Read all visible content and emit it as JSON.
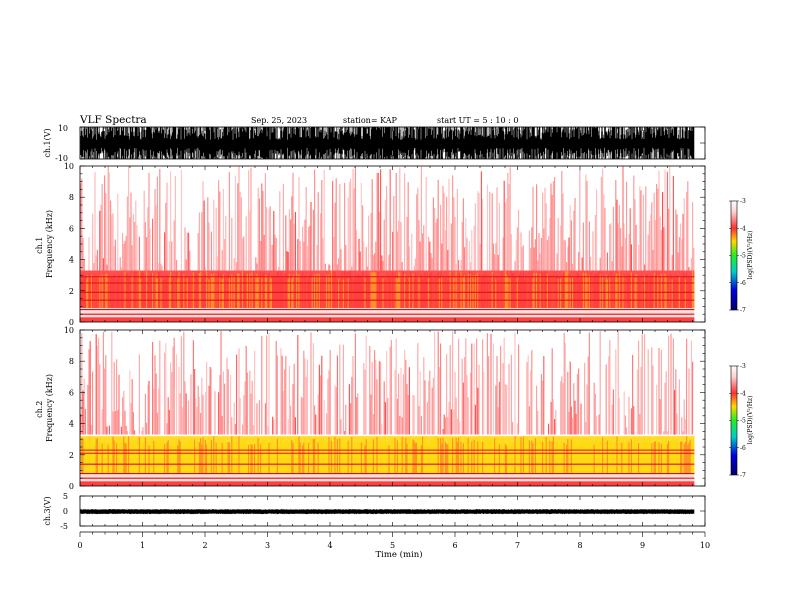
{
  "header": {
    "title": "VLF Spectra",
    "date": "Sep. 25, 2023",
    "station": "station= KAP",
    "start": "start  UT =   5  : 10 : 0"
  },
  "chart_data": [
    {
      "type": "line",
      "panel": "ch1-waveform",
      "ylabel": "ch.1(V)",
      "ylim": [
        -10,
        10
      ],
      "yticks": [
        "10",
        "-10"
      ],
      "x_unit": "Time (min)",
      "xlim": [
        0,
        10
      ],
      "data_end_min": 9.83,
      "signal": "dense noise saturating roughly -10 to 10 V"
    },
    {
      "type": "heatmap",
      "panel": "ch1-spectrogram",
      "ylabel": "ch.1\nFrequency (kHz)",
      "ylim": [
        0,
        10
      ],
      "yticks": [
        "10",
        "8",
        "6",
        "4",
        "2",
        "0"
      ],
      "xlim": [
        0,
        10
      ],
      "data_end_min": 9.83,
      "colorbar": {
        "label": "log(PSD)(V²/Hz)",
        "range": [
          -7,
          -3
        ],
        "ticks": [
          "-3",
          "-4",
          "-5",
          "-6",
          "-7"
        ],
        "colors": [
          "#ffffff",
          "#ff3030",
          "#ffd700",
          "#22ee22",
          "#00cccc",
          "#0000dd",
          "#00006e"
        ]
      },
      "bands": [
        {
          "from_khz": 0,
          "to_khz": 0.9,
          "log_psd": -3.6
        },
        {
          "from_khz": 0.9,
          "to_khz": 3.3,
          "log_psd": -4.1
        },
        {
          "from_khz": 3.3,
          "to_khz": 10,
          "log_psd": -3.4
        }
      ],
      "lines_khz": [
        0.5,
        0.8,
        1.4,
        1.9,
        2.5,
        2.9
      ]
    },
    {
      "type": "heatmap",
      "panel": "ch2-spectrogram",
      "ylabel": "ch.2\nFrequency (kHz)",
      "ylim": [
        0,
        10
      ],
      "yticks": [
        "10",
        "8",
        "6",
        "4",
        "2",
        "0"
      ],
      "xlim": [
        0,
        10
      ],
      "data_end_min": 9.83,
      "colorbar": {
        "label": "log(PSD)(V²/Hz)",
        "range": [
          -7,
          -3
        ],
        "ticks": [
          "-3",
          "-4",
          "-5",
          "-6",
          "-7"
        ],
        "colors": [
          "#ffffff",
          "#ff3030",
          "#ffd700",
          "#22ee22",
          "#00cccc",
          "#0000dd",
          "#00006e"
        ]
      },
      "bands": [
        {
          "from_khz": 0,
          "to_khz": 0.8,
          "log_psd": -3.7
        },
        {
          "from_khz": 0.8,
          "to_khz": 3.2,
          "log_psd": -4.6
        },
        {
          "from_khz": 3.2,
          "to_khz": 10,
          "log_psd": -3.4
        }
      ],
      "lines_khz": [
        0.5,
        0.8,
        1.4,
        2.1,
        2.3
      ]
    },
    {
      "type": "line",
      "panel": "ch3-waveform",
      "ylabel": "ch.3(V)",
      "ylim": [
        -5,
        5
      ],
      "yticks": [
        "5",
        "0",
        "-5"
      ],
      "xlim": [
        0,
        10
      ],
      "xticks": [
        "0",
        "1",
        "2",
        "3",
        "4",
        "5",
        "6",
        "7",
        "8",
        "9",
        "10"
      ],
      "xlabel": "Time (min)",
      "data_end_min": 9.83,
      "signal": "narrow band around -0.8 to 0.4 V"
    }
  ]
}
